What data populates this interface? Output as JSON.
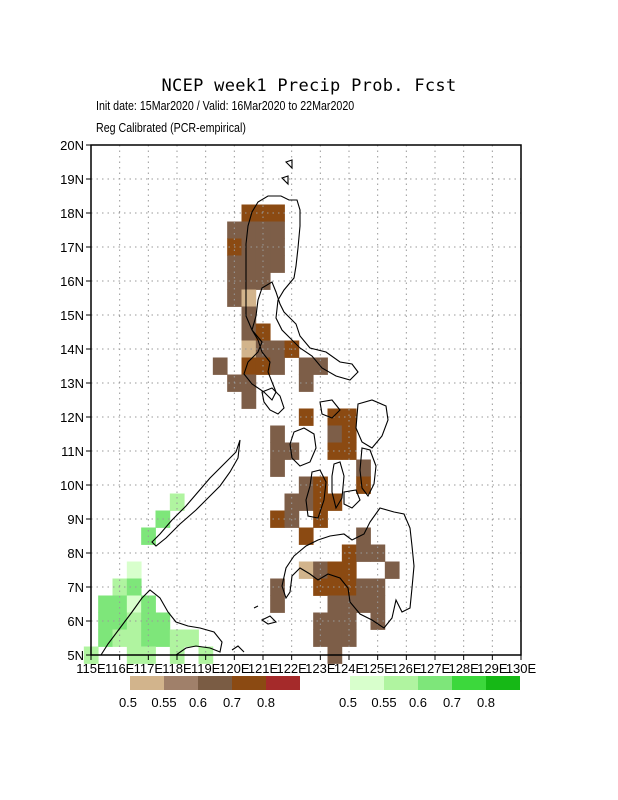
{
  "title": "NCEP week1 Precip Prob. Fcst",
  "subtitle_line1": "Init date: 15Mar2020 / Valid: 16Mar2020 to 22Mar2020",
  "subtitle_line2": "Reg Calibrated (PCR-empirical)",
  "map": {
    "lon_range": [
      115,
      130
    ],
    "lat_range": [
      5,
      20
    ],
    "grid_step_deg": 1,
    "gridlines": "dotted",
    "lon_labels": [
      "115E",
      "116E",
      "117E",
      "118E",
      "119E",
      "120E",
      "121E",
      "122E",
      "123E",
      "124E",
      "125E",
      "126E",
      "127E",
      "128E",
      "129E",
      "130E"
    ],
    "lat_labels": [
      "5N",
      "6N",
      "7N",
      "8N",
      "9N",
      "10N",
      "11N",
      "12N",
      "13N",
      "14N",
      "15N",
      "16N",
      "17N",
      "18N",
      "19N",
      "20N"
    ]
  },
  "legends": {
    "dry": {
      "colors": [
        "#d2b48c",
        "#a0806a",
        "#7a5c44",
        "#8b4a12",
        "#a52a2a"
      ],
      "labels": [
        "0.5",
        "0.55",
        "0.6",
        "0.7",
        "0.8"
      ]
    },
    "wet": {
      "colors": [
        "#d8ffcc",
        "#b0f4a0",
        "#7ee67a",
        "#3cd83c",
        "#16b816"
      ],
      "labels": [
        "0.5",
        "0.55",
        "0.6",
        "0.7",
        "0.8"
      ]
    }
  },
  "cell_colors": {
    "D1": "#d2b48c",
    "D2": "#7d5e48",
    "D3": "#8b4a12",
    "W1": "#d8ffcc",
    "W2": "#b0f4a0",
    "W3": "#7ee67a"
  },
  "cells": [
    [
      "D3",
      120.5,
      18.0
    ],
    [
      "D3",
      121.0,
      18.0
    ],
    [
      "D3",
      121.5,
      18.0
    ],
    [
      "D2",
      120.5,
      17.5
    ],
    [
      "D2",
      121.0,
      17.5
    ],
    [
      "D2",
      121.5,
      17.5
    ],
    [
      "D2",
      120.0,
      17.5
    ],
    [
      "D3",
      120.0,
      17.0
    ],
    [
      "D2",
      120.5,
      17.0
    ],
    [
      "D2",
      121.0,
      17.0
    ],
    [
      "D2",
      121.5,
      17.0
    ],
    [
      "D2",
      120.0,
      16.5
    ],
    [
      "D2",
      120.5,
      16.5
    ],
    [
      "D2",
      121.0,
      16.5
    ],
    [
      "D2",
      121.5,
      16.5
    ],
    [
      "D2",
      120.0,
      16.0
    ],
    [
      "D2",
      120.5,
      16.0
    ],
    [
      "D2",
      121.0,
      16.0
    ],
    [
      "D2",
      120.0,
      15.5
    ],
    [
      "D1",
      120.5,
      15.5
    ],
    [
      "D2",
      120.5,
      15.0
    ],
    [
      "D2",
      120.5,
      14.5
    ],
    [
      "D3",
      121.0,
      14.5
    ],
    [
      "D2",
      120.5,
      14.0
    ],
    [
      "D1",
      120.5,
      14.0
    ],
    [
      "D2",
      121.0,
      14.0
    ],
    [
      "D2",
      121.5,
      14.0
    ],
    [
      "D3",
      122.0,
      14.0
    ],
    [
      "D2",
      119.5,
      13.5
    ],
    [
      "D3",
      120.5,
      13.5
    ],
    [
      "D3",
      121.0,
      13.5
    ],
    [
      "D2",
      121.5,
      13.5
    ],
    [
      "D2",
      122.5,
      13.5
    ],
    [
      "D2",
      123.0,
      13.5
    ],
    [
      "D2",
      120.0,
      13.0
    ],
    [
      "D2",
      120.5,
      13.0
    ],
    [
      "D2",
      122.5,
      13.0
    ],
    [
      "D2",
      120.5,
      12.5
    ],
    [
      "D3",
      122.5,
      12.0
    ],
    [
      "D3",
      123.5,
      12.0
    ],
    [
      "D3",
      124.0,
      12.0
    ],
    [
      "D2",
      121.5,
      11.5
    ],
    [
      "D2",
      123.5,
      11.5
    ],
    [
      "D3",
      124.0,
      11.5
    ],
    [
      "D2",
      121.5,
      11.0
    ],
    [
      "D2",
      122.0,
      11.0
    ],
    [
      "D3",
      123.5,
      11.0
    ],
    [
      "D3",
      124.0,
      11.0
    ],
    [
      "D2",
      121.5,
      10.5
    ],
    [
      "D2",
      124.5,
      10.5
    ],
    [
      "D2",
      122.5,
      10.0
    ],
    [
      "D3",
      123.0,
      10.0
    ],
    [
      "D3",
      124.5,
      10.0
    ],
    [
      "D2",
      122.0,
      9.5
    ],
    [
      "D2",
      122.5,
      9.5
    ],
    [
      "D3",
      123.0,
      9.5
    ],
    [
      "D3",
      123.5,
      9.5
    ],
    [
      "D3",
      121.5,
      9.0
    ],
    [
      "D3",
      123.0,
      9.0
    ],
    [
      "D2",
      122.0,
      9.0
    ],
    [
      "D3",
      122.5,
      8.5
    ],
    [
      "D2",
      124.5,
      8.5
    ],
    [
      "D3",
      124.0,
      8.0
    ],
    [
      "D2",
      124.5,
      8.0
    ],
    [
      "D2",
      125.0,
      8.0
    ],
    [
      "D2",
      124.0,
      7.5
    ],
    [
      "D1",
      122.5,
      7.5
    ],
    [
      "D2",
      123.0,
      7.5
    ],
    [
      "D3",
      123.5,
      7.5
    ],
    [
      "D3",
      124.0,
      7.5
    ],
    [
      "D2",
      125.5,
      7.5
    ],
    [
      "D2",
      121.5,
      7.0
    ],
    [
      "D3",
      123.0,
      7.0
    ],
    [
      "D3",
      123.5,
      7.0
    ],
    [
      "D3",
      124.0,
      7.0
    ],
    [
      "D2",
      124.5,
      7.0
    ],
    [
      "D2",
      125.0,
      7.0
    ],
    [
      "D2",
      121.5,
      6.5
    ],
    [
      "D2",
      123.5,
      6.5
    ],
    [
      "D2",
      124.0,
      6.5
    ],
    [
      "D2",
      124.5,
      6.5
    ],
    [
      "D2",
      125.0,
      6.5
    ],
    [
      "D2",
      123.0,
      6.0
    ],
    [
      "D2",
      123.5,
      6.0
    ],
    [
      "D2",
      124.0,
      6.0
    ],
    [
      "D2",
      125.0,
      6.0
    ],
    [
      "D2",
      123.0,
      5.5
    ],
    [
      "D2",
      123.5,
      5.5
    ],
    [
      "D2",
      124.0,
      5.5
    ],
    [
      "D2",
      123.5,
      5.0
    ],
    [
      "W2",
      118.0,
      9.5
    ],
    [
      "W3",
      117.5,
      9.0
    ],
    [
      "W3",
      117.0,
      8.5
    ],
    [
      "W1",
      116.5,
      7.5
    ],
    [
      "W2",
      116.0,
      7.0
    ],
    [
      "W3",
      116.5,
      7.0
    ],
    [
      "W3",
      115.5,
      6.5
    ],
    [
      "W3",
      116.0,
      6.5
    ],
    [
      "W1",
      116.5,
      6.5
    ],
    [
      "W3",
      117.0,
      6.5
    ],
    [
      "W3",
      115.5,
      6.0
    ],
    [
      "W3",
      116.0,
      6.0
    ],
    [
      "W2",
      116.5,
      6.0
    ],
    [
      "W3",
      117.0,
      6.0
    ],
    [
      "W3",
      117.5,
      6.0
    ],
    [
      "W3",
      115.5,
      5.5
    ],
    [
      "W2",
      116.0,
      5.5
    ],
    [
      "W2",
      116.5,
      5.5
    ],
    [
      "W3",
      117.0,
      5.5
    ],
    [
      "W3",
      117.5,
      5.5
    ],
    [
      "W2",
      118.0,
      5.5
    ],
    [
      "W2",
      118.5,
      5.5
    ],
    [
      "W2",
      115.0,
      5.0
    ],
    [
      "W2",
      116.5,
      5.0
    ],
    [
      "W2",
      117.0,
      5.0
    ],
    [
      "W2",
      118.0,
      5.0
    ],
    [
      "W2",
      119.0,
      5.0
    ]
  ]
}
